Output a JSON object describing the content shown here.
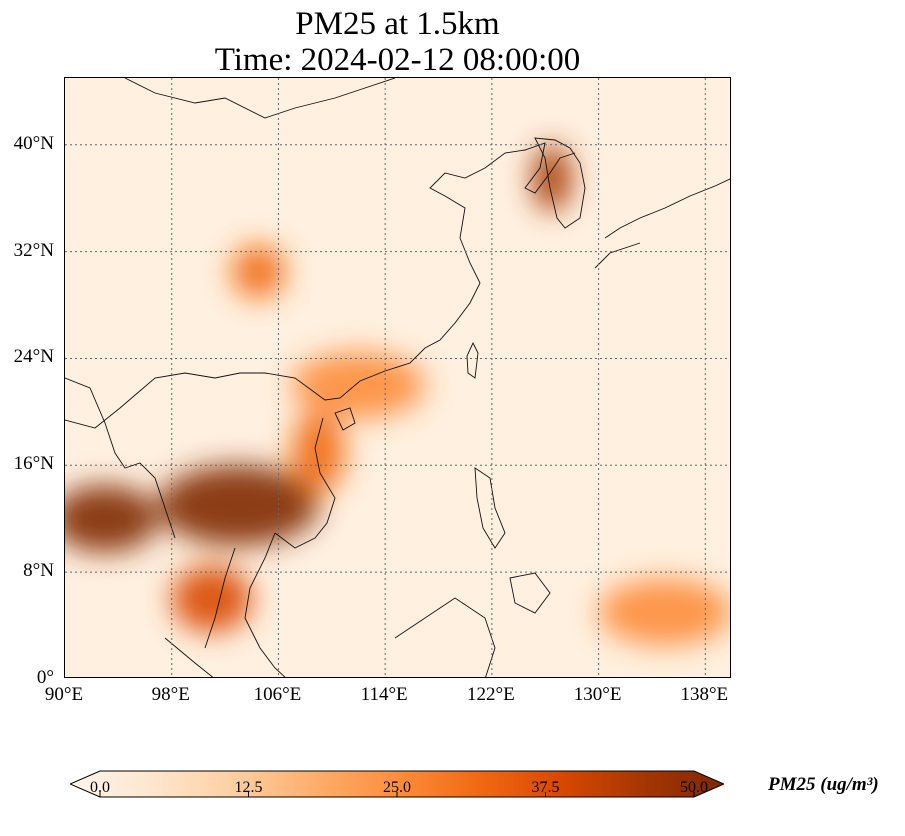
{
  "title": {
    "line1": "PM25 at 1.5km",
    "line2": "Time: 2024-02-12 08:00:00"
  },
  "map": {
    "extent_lon": [
      90,
      140
    ],
    "extent_lat": [
      0,
      45
    ],
    "lon_ticks": [
      {
        "value": 90,
        "label": "90°E"
      },
      {
        "value": 98,
        "label": "98°E"
      },
      {
        "value": 106,
        "label": "106°E"
      },
      {
        "value": 114,
        "label": "114°E"
      },
      {
        "value": 122,
        "label": "122°E"
      },
      {
        "value": 130,
        "label": "130°E"
      },
      {
        "value": 138,
        "label": "138°E"
      }
    ],
    "lat_ticks": [
      {
        "value": 0,
        "label": "0°"
      },
      {
        "value": 8,
        "label": "8°N"
      },
      {
        "value": 16,
        "label": "16°N"
      },
      {
        "value": 24,
        "label": "24°N"
      },
      {
        "value": 32,
        "label": "32°N"
      },
      {
        "value": 40,
        "label": "40°N"
      }
    ],
    "gridlines": true,
    "hotspots": [
      {
        "name": "indochina",
        "lon": 103,
        "lat": 13,
        "value": 50,
        "rlon": 6,
        "rlat": 3
      },
      {
        "name": "myanmar-west",
        "lon": 93,
        "lat": 12,
        "value": 50,
        "rlon": 4,
        "rlat": 2.5
      },
      {
        "name": "korea",
        "lon": 126.5,
        "lat": 37.5,
        "value": 45,
        "rlon": 1.5,
        "rlat": 2.5
      },
      {
        "name": "sichuan",
        "lon": 104.5,
        "lat": 30.5,
        "value": 32,
        "rlon": 2,
        "rlat": 2
      },
      {
        "name": "thailand-south",
        "lon": 101,
        "lat": 6,
        "value": 38,
        "rlon": 3,
        "rlat": 2.5
      },
      {
        "name": "vietnam-coast",
        "lon": 109,
        "lat": 17,
        "value": 34,
        "rlon": 2,
        "rlat": 3
      },
      {
        "name": "pacific-plume",
        "lon": 135,
        "lat": 5,
        "value": 26,
        "rlon": 5,
        "rlat": 2.5
      },
      {
        "name": "south-china",
        "lon": 112,
        "lat": 22,
        "value": 22,
        "rlon": 5,
        "rlat": 2.5
      }
    ]
  },
  "colorbar": {
    "label": "PM25 (ug/m³)",
    "min": 0.0,
    "max": 50.0,
    "ticks": [
      "0.0",
      "12.5",
      "25.0",
      "37.5",
      "50.0"
    ],
    "colors": [
      "#fff5eb",
      "#fee6ce",
      "#fdd0a2",
      "#fdae6b",
      "#fd8d3c",
      "#f16913",
      "#d94801",
      "#a63603",
      "#7f2704"
    ]
  }
}
